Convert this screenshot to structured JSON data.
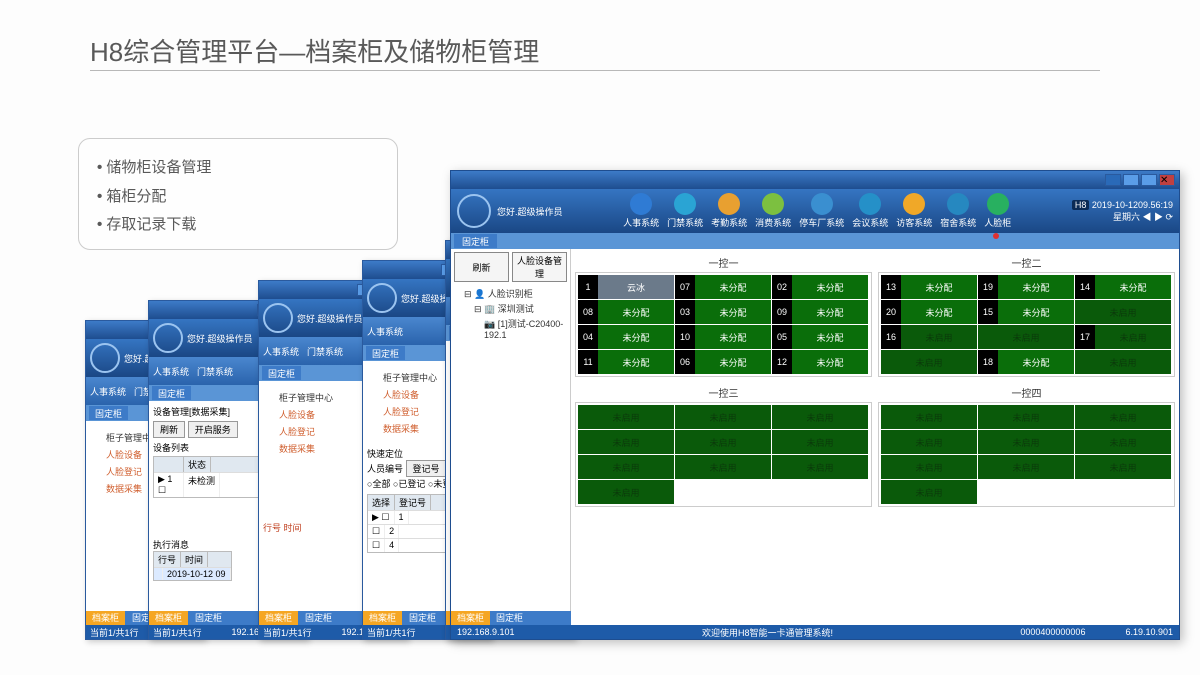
{
  "slide": {
    "title": "H8综合管理平台—档案柜及储物柜管理"
  },
  "bullets": [
    "储物柜设备管理",
    "箱柜分配",
    "存取记录下载"
  ],
  "smallWin": {
    "greeting": "您好.超级操作员",
    "toolbarItems": [
      "人事系统",
      "门禁系统"
    ],
    "fixedTab": "固定柜",
    "tree": [
      "柜子管理中心",
      "人脸设备",
      "人脸登记",
      "数据采集"
    ],
    "bottomTabs": [
      "档案柜",
      "固定柜"
    ],
    "status": {
      "page": "当前1/共1行",
      "ip": "192.168.9.101"
    }
  },
  "win2": {
    "panelTitle": "设备管理[数据采集]",
    "btnRefresh": "刷新",
    "btnOpen": "开启服务",
    "listLabel": "设备列表",
    "colState": "状态",
    "cellValue": "未检测"
  },
  "win3": {
    "extraTree": [
      "快速定位",
      "人员编号"
    ],
    "btnLogin": "登记号",
    "chkAll": "全部",
    "chkReg": "已登记",
    "chkUnreg": "未登记",
    "selLabel": "选择",
    "regLabel": "登记号",
    "execLabel": "执行消息",
    "colIdx": "行号",
    "colTime": "时间",
    "ipLabel": "IP号:"
  },
  "main": {
    "greeting": "您好.超级操作员",
    "nav": [
      {
        "label": "人事系统",
        "color": "#2f7bd4"
      },
      {
        "label": "门禁系统",
        "color": "#2aa4d4"
      },
      {
        "label": "考勤系统",
        "color": "#e8a030"
      },
      {
        "label": "消费系统",
        "color": "#7cc040"
      },
      {
        "label": "停车厂系统",
        "color": "#3a8fd0"
      },
      {
        "label": "会议系统",
        "color": "#2590c8"
      },
      {
        "label": "访客系统",
        "color": "#f0a828"
      },
      {
        "label": "宿舍系统",
        "color": "#2688c0"
      },
      {
        "label": "人脸柜",
        "color": "#28b060"
      }
    ],
    "clock": {
      "badge": "H8",
      "time": "2019-10-1209.56:19",
      "weekday": "星期六"
    },
    "fixedTab": "固定柜",
    "btnRefresh": "刷新",
    "btnDevice": "人脸设备管理",
    "tree": {
      "root": "人脸识别柜",
      "child1": "深圳测试",
      "child2": "[1]测试-C20400-192.1"
    },
    "groups": {
      "g1": {
        "title": "一控一",
        "cells": [
          {
            "n": "1",
            "t": "云冰",
            "c": "assigned"
          },
          {
            "n": "02",
            "t": "未分配",
            "c": "unassigned"
          },
          {
            "n": "03",
            "t": "未分配",
            "c": "unassigned"
          },
          {
            "n": "04",
            "t": "未分配",
            "c": "unassigned"
          },
          {
            "n": "05",
            "t": "未分配",
            "c": "unassigned"
          },
          {
            "n": "06",
            "t": "未分配",
            "c": "unassigned"
          },
          {
            "n": "07",
            "t": "未分配",
            "c": "unassigned"
          },
          {
            "n": "08",
            "t": "未分配",
            "c": "unassigned"
          },
          {
            "n": "09",
            "t": "未分配",
            "c": "unassigned"
          },
          {
            "n": "10",
            "t": "未分配",
            "c": "unassigned"
          },
          {
            "n": "11",
            "t": "未分配",
            "c": "unassigned"
          },
          {
            "n": "12",
            "t": "未分配",
            "c": "unassigned"
          }
        ]
      },
      "g2": {
        "title": "一控二",
        "cells": [
          {
            "n": "13",
            "t": "未分配",
            "c": "unassigned"
          },
          {
            "n": "14",
            "t": "未分配",
            "c": "unassigned"
          },
          {
            "n": "15",
            "t": "未分配",
            "c": "unassigned"
          },
          {
            "n": "16",
            "t": "未启用",
            "c": "disabled"
          },
          {
            "n": "17",
            "t": "未启用",
            "c": "disabled"
          },
          {
            "n": "18",
            "t": "未分配",
            "c": "unassigned"
          },
          {
            "n": "19",
            "t": "未分配",
            "c": "unassigned"
          },
          {
            "n": "20",
            "t": "未分配",
            "c": "unassigned"
          },
          {
            "n": "",
            "t": "未启用",
            "c": "disabled"
          },
          {
            "n": "",
            "t": "未启用",
            "c": "disabled"
          },
          {
            "n": "",
            "t": "未启用",
            "c": "disabled"
          },
          {
            "n": "",
            "t": "未启用",
            "c": "disabled"
          }
        ]
      },
      "g3": {
        "title": "一控三",
        "cells": [
          {
            "t": "未启用",
            "c": "disabled"
          },
          {
            "t": "未启用",
            "c": "disabled"
          },
          {
            "t": "未启用",
            "c": "disabled"
          },
          {
            "t": "未启用",
            "c": "disabled"
          },
          {
            "t": "未启用",
            "c": "disabled"
          },
          {
            "t": "未启用",
            "c": "disabled"
          },
          {
            "t": "未启用",
            "c": "disabled"
          },
          {
            "t": "未启用",
            "c": "disabled"
          },
          {
            "t": "未启用",
            "c": "disabled"
          },
          {
            "t": "未启用",
            "c": "disabled"
          }
        ]
      },
      "g4": {
        "title": "一控四",
        "cells": [
          {
            "t": "未启用",
            "c": "disabled"
          },
          {
            "t": "未启用",
            "c": "disabled"
          },
          {
            "t": "未启用",
            "c": "disabled"
          },
          {
            "t": "未启用",
            "c": "disabled"
          },
          {
            "t": "未启用",
            "c": "disabled"
          },
          {
            "t": "未启用",
            "c": "disabled"
          },
          {
            "t": "未启用",
            "c": "disabled"
          },
          {
            "t": "未启用",
            "c": "disabled"
          },
          {
            "t": "未启用",
            "c": "disabled"
          },
          {
            "t": "未启用",
            "c": "disabled"
          }
        ]
      }
    },
    "status": {
      "ip": "192.168.9.101",
      "welcome": "欢迎使用H8智能一卡通管理系统!",
      "code": "0000400000006",
      "ver": "6.19.10.901"
    }
  }
}
